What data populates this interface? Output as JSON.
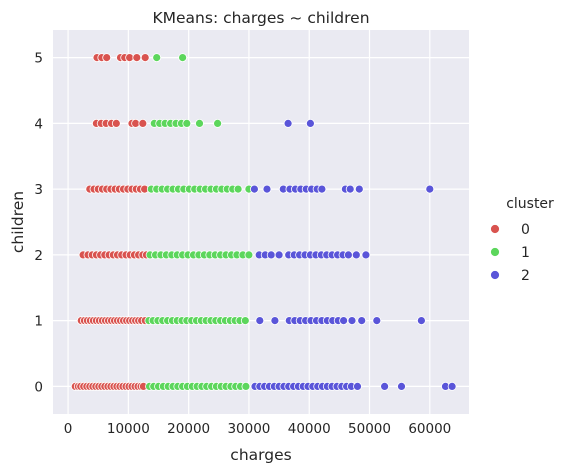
{
  "chart_data": {
    "type": "scatter",
    "title": "KMeans: charges ~ children",
    "xlabel": "charges",
    "ylabel": "children",
    "xlim": [
      -2500,
      66500
    ],
    "ylim": [
      -0.42,
      5.42
    ],
    "xticks": [
      0,
      10000,
      20000,
      30000,
      40000,
      50000,
      60000
    ],
    "yticks": [
      0,
      1,
      2,
      3,
      4,
      5
    ],
    "grid": true,
    "background": "#eaeaf2",
    "legend": {
      "title": "cluster",
      "position": "right"
    },
    "series": [
      {
        "name": "0",
        "color": "#d9534f",
        "points": [
          [
            1200,
            0
          ],
          [
            1700,
            0
          ],
          [
            2100,
            0
          ],
          [
            2600,
            0
          ],
          [
            3100,
            0
          ],
          [
            3600,
            0
          ],
          [
            4100,
            0
          ],
          [
            4600,
            0
          ],
          [
            5100,
            0
          ],
          [
            5600,
            0
          ],
          [
            6100,
            0
          ],
          [
            6600,
            0
          ],
          [
            7100,
            0
          ],
          [
            7600,
            0
          ],
          [
            8100,
            0
          ],
          [
            8600,
            0
          ],
          [
            9100,
            0
          ],
          [
            9600,
            0
          ],
          [
            10100,
            0
          ],
          [
            10600,
            0
          ],
          [
            11100,
            0
          ],
          [
            11600,
            0
          ],
          [
            12100,
            0
          ],
          [
            12500,
            0
          ],
          [
            2200,
            1
          ],
          [
            2700,
            1
          ],
          [
            3200,
            1
          ],
          [
            3700,
            1
          ],
          [
            4200,
            1
          ],
          [
            4700,
            1
          ],
          [
            5200,
            1
          ],
          [
            5700,
            1
          ],
          [
            6200,
            1
          ],
          [
            6700,
            1
          ],
          [
            7200,
            1
          ],
          [
            7700,
            1
          ],
          [
            8200,
            1
          ],
          [
            8700,
            1
          ],
          [
            9200,
            1
          ],
          [
            9700,
            1
          ],
          [
            10200,
            1
          ],
          [
            10700,
            1
          ],
          [
            11200,
            1
          ],
          [
            11700,
            1
          ],
          [
            12200,
            1
          ],
          [
            12800,
            1
          ],
          [
            2500,
            2
          ],
          [
            3300,
            2
          ],
          [
            4000,
            2
          ],
          [
            4700,
            2
          ],
          [
            5400,
            2
          ],
          [
            6100,
            2
          ],
          [
            6800,
            2
          ],
          [
            7500,
            2
          ],
          [
            8200,
            2
          ],
          [
            8900,
            2
          ],
          [
            9600,
            2
          ],
          [
            10300,
            2
          ],
          [
            11000,
            2
          ],
          [
            11700,
            2
          ],
          [
            12400,
            2
          ],
          [
            13000,
            2
          ],
          [
            3600,
            3
          ],
          [
            4300,
            3
          ],
          [
            5000,
            3
          ],
          [
            5700,
            3
          ],
          [
            6400,
            3
          ],
          [
            7100,
            3
          ],
          [
            7800,
            3
          ],
          [
            8500,
            3
          ],
          [
            9200,
            3
          ],
          [
            9900,
            3
          ],
          [
            10600,
            3
          ],
          [
            11300,
            3
          ],
          [
            12000,
            3
          ],
          [
            12700,
            3
          ],
          [
            4700,
            4
          ],
          [
            5500,
            4
          ],
          [
            6300,
            4
          ],
          [
            7200,
            4
          ],
          [
            8000,
            4
          ],
          [
            10600,
            4
          ],
          [
            11200,
            4
          ],
          [
            12400,
            4
          ],
          [
            4800,
            5
          ],
          [
            5600,
            5
          ],
          [
            6400,
            5
          ],
          [
            8700,
            5
          ],
          [
            9400,
            5
          ],
          [
            10200,
            5
          ],
          [
            11400,
            5
          ],
          [
            12800,
            5
          ]
        ]
      },
      {
        "name": "1",
        "color": "#5cd65c",
        "points": [
          [
            13500,
            0
          ],
          [
            14200,
            0
          ],
          [
            15000,
            0
          ],
          [
            15800,
            0
          ],
          [
            16600,
            0
          ],
          [
            17400,
            0
          ],
          [
            18200,
            0
          ],
          [
            19000,
            0
          ],
          [
            19800,
            0
          ],
          [
            20600,
            0
          ],
          [
            21400,
            0
          ],
          [
            22200,
            0
          ],
          [
            23000,
            0
          ],
          [
            23800,
            0
          ],
          [
            24600,
            0
          ],
          [
            25400,
            0
          ],
          [
            26200,
            0
          ],
          [
            27000,
            0
          ],
          [
            27800,
            0
          ],
          [
            28600,
            0
          ],
          [
            29500,
            0
          ],
          [
            13400,
            1
          ],
          [
            14100,
            1
          ],
          [
            14900,
            1
          ],
          [
            15700,
            1
          ],
          [
            16500,
            1
          ],
          [
            17300,
            1
          ],
          [
            18100,
            1
          ],
          [
            18900,
            1
          ],
          [
            19700,
            1
          ],
          [
            20500,
            1
          ],
          [
            21300,
            1
          ],
          [
            22100,
            1
          ],
          [
            22900,
            1
          ],
          [
            23700,
            1
          ],
          [
            24500,
            1
          ],
          [
            25300,
            1
          ],
          [
            26100,
            1
          ],
          [
            26900,
            1
          ],
          [
            27700,
            1
          ],
          [
            28500,
            1
          ],
          [
            29400,
            1
          ],
          [
            13600,
            2
          ],
          [
            14500,
            2
          ],
          [
            15400,
            2
          ],
          [
            16300,
            2
          ],
          [
            17200,
            2
          ],
          [
            18100,
            2
          ],
          [
            19000,
            2
          ],
          [
            19900,
            2
          ],
          [
            20800,
            2
          ],
          [
            21700,
            2
          ],
          [
            22600,
            2
          ],
          [
            23500,
            2
          ],
          [
            24400,
            2
          ],
          [
            25300,
            2
          ],
          [
            26200,
            2
          ],
          [
            27100,
            2
          ],
          [
            28000,
            2
          ],
          [
            29000,
            2
          ],
          [
            30000,
            2
          ],
          [
            13800,
            3
          ],
          [
            14700,
            3
          ],
          [
            15600,
            3
          ],
          [
            16500,
            3
          ],
          [
            17400,
            3
          ],
          [
            18300,
            3
          ],
          [
            19200,
            3
          ],
          [
            20100,
            3
          ],
          [
            21000,
            3
          ],
          [
            21900,
            3
          ],
          [
            22800,
            3
          ],
          [
            23700,
            3
          ],
          [
            24600,
            3
          ],
          [
            25500,
            3
          ],
          [
            26400,
            3
          ],
          [
            27300,
            3
          ],
          [
            28200,
            3
          ],
          [
            30000,
            3
          ],
          [
            14300,
            4
          ],
          [
            15200,
            4
          ],
          [
            16100,
            4
          ],
          [
            17000,
            4
          ],
          [
            17900,
            4
          ],
          [
            18800,
            4
          ],
          [
            19700,
            4
          ],
          [
            21800,
            4
          ],
          [
            24800,
            4
          ],
          [
            14700,
            5
          ],
          [
            19000,
            5
          ]
        ]
      },
      {
        "name": "2",
        "color": "#5a55d9",
        "points": [
          [
            31000,
            0
          ],
          [
            31800,
            0
          ],
          [
            32600,
            0
          ],
          [
            33400,
            0
          ],
          [
            34200,
            0
          ],
          [
            35000,
            0
          ],
          [
            35800,
            0
          ],
          [
            36600,
            0
          ],
          [
            37400,
            0
          ],
          [
            38200,
            0
          ],
          [
            39000,
            0
          ],
          [
            39800,
            0
          ],
          [
            40600,
            0
          ],
          [
            41400,
            0
          ],
          [
            42200,
            0
          ],
          [
            43000,
            0
          ],
          [
            43800,
            0
          ],
          [
            44600,
            0
          ],
          [
            45400,
            0
          ],
          [
            46200,
            0
          ],
          [
            47000,
            0
          ],
          [
            48000,
            0
          ],
          [
            52500,
            0
          ],
          [
            55300,
            0
          ],
          [
            62600,
            0
          ],
          [
            63700,
            0
          ],
          [
            31800,
            1
          ],
          [
            34300,
            1
          ],
          [
            36700,
            1
          ],
          [
            37600,
            1
          ],
          [
            38500,
            1
          ],
          [
            39400,
            1
          ],
          [
            40300,
            1
          ],
          [
            41200,
            1
          ],
          [
            42100,
            1
          ],
          [
            43000,
            1
          ],
          [
            43900,
            1
          ],
          [
            44800,
            1
          ],
          [
            45700,
            1
          ],
          [
            47100,
            1
          ],
          [
            48700,
            1
          ],
          [
            51200,
            1
          ],
          [
            58600,
            1
          ],
          [
            31700,
            2
          ],
          [
            32700,
            2
          ],
          [
            33700,
            2
          ],
          [
            35000,
            2
          ],
          [
            36600,
            2
          ],
          [
            37500,
            2
          ],
          [
            38400,
            2
          ],
          [
            39300,
            2
          ],
          [
            40200,
            2
          ],
          [
            41100,
            2
          ],
          [
            42000,
            2
          ],
          [
            42900,
            2
          ],
          [
            43800,
            2
          ],
          [
            44700,
            2
          ],
          [
            45600,
            2
          ],
          [
            46500,
            2
          ],
          [
            47800,
            2
          ],
          [
            49400,
            2
          ],
          [
            30900,
            3
          ],
          [
            33000,
            3
          ],
          [
            35700,
            3
          ],
          [
            36800,
            3
          ],
          [
            37700,
            3
          ],
          [
            38600,
            3
          ],
          [
            39500,
            3
          ],
          [
            40400,
            3
          ],
          [
            41300,
            3
          ],
          [
            42100,
            3
          ],
          [
            46000,
            3
          ],
          [
            46800,
            3
          ],
          [
            48300,
            3
          ],
          [
            60000,
            3
          ],
          [
            36500,
            4
          ],
          [
            40200,
            4
          ]
        ]
      }
    ]
  }
}
